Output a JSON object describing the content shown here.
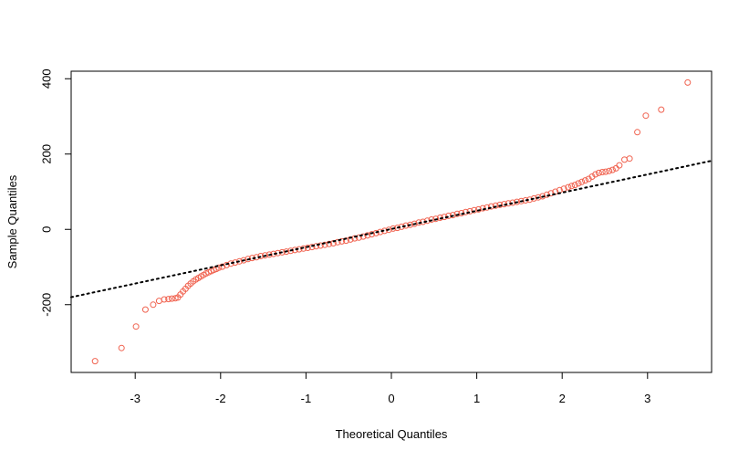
{
  "chart_data": {
    "type": "scatter",
    "xlabel": "Theoretical Quantiles",
    "ylabel": "Sample Quantiles",
    "x_ticks": [
      -3,
      -2,
      -1,
      0,
      1,
      2,
      3
    ],
    "x_tick_labels": [
      "-3",
      "-2",
      "-1",
      "0",
      "1",
      "2",
      "3"
    ],
    "y_ticks": [
      -200,
      0,
      200,
      400
    ],
    "y_tick_labels": [
      "-200",
      "0",
      "200",
      "400"
    ],
    "xlim": [
      -3.75,
      3.75
    ],
    "ylim": [
      -380,
      420
    ],
    "grid": false,
    "point_color": "#f0624f",
    "line_color": "#000000",
    "reference_line": {
      "slope": 48.3,
      "intercept": 1,
      "style": "dotted"
    },
    "series": [
      {
        "marker": "open-circle",
        "points": [
          [
            -3.47,
            -350
          ],
          [
            -3.16,
            -315
          ],
          [
            -2.99,
            -258
          ],
          [
            -2.88,
            -213
          ],
          [
            -2.79,
            -200
          ],
          [
            -2.72,
            -190
          ],
          [
            -2.66,
            -186
          ],
          [
            -2.61,
            -185
          ],
          [
            -2.57,
            -184
          ],
          [
            -2.53,
            -183
          ],
          [
            -2.5,
            -181
          ],
          [
            -2.47,
            -173
          ],
          [
            -2.44,
            -165
          ],
          [
            -2.41,
            -158
          ],
          [
            -2.38,
            -150
          ],
          [
            -2.35,
            -144
          ],
          [
            -2.32,
            -138
          ],
          [
            -2.29,
            -133
          ],
          [
            -2.26,
            -129
          ],
          [
            -2.23,
            -125
          ],
          [
            -2.2,
            -121
          ],
          [
            -2.17,
            -117
          ],
          [
            -2.14,
            -114
          ],
          [
            -2.11,
            -111
          ],
          [
            -2.08,
            -108
          ],
          [
            -2.05,
            -105
          ],
          [
            -2.02,
            -102
          ],
          [
            -1.98,
            -99
          ],
          [
            -1.93,
            -95
          ],
          [
            -1.88,
            -91
          ],
          [
            -1.83,
            -88
          ],
          [
            -1.78,
            -85
          ],
          [
            -1.73,
            -82
          ],
          [
            -1.68,
            -79
          ],
          [
            -1.63,
            -76
          ],
          [
            -1.58,
            -74
          ],
          [
            -1.53,
            -71
          ],
          [
            -1.48,
            -69
          ],
          [
            -1.43,
            -67
          ],
          [
            -1.38,
            -65
          ],
          [
            -1.33,
            -63
          ],
          [
            -1.28,
            -61
          ],
          [
            -1.23,
            -59
          ],
          [
            -1.18,
            -57
          ],
          [
            -1.13,
            -55
          ],
          [
            -1.08,
            -53
          ],
          [
            -1.03,
            -51
          ],
          [
            -0.98,
            -49
          ],
          [
            -0.93,
            -47
          ],
          [
            -0.88,
            -45
          ],
          [
            -0.83,
            -43
          ],
          [
            -0.78,
            -41
          ],
          [
            -0.73,
            -39
          ],
          [
            -0.68,
            -37
          ],
          [
            -0.63,
            -34
          ],
          [
            -0.58,
            -32
          ],
          [
            -0.53,
            -30
          ],
          [
            -0.48,
            -27
          ],
          [
            -0.43,
            -24
          ],
          [
            -0.38,
            -22
          ],
          [
            -0.33,
            -19
          ],
          [
            -0.28,
            -16
          ],
          [
            -0.23,
            -13
          ],
          [
            -0.18,
            -10
          ],
          [
            -0.13,
            -7
          ],
          [
            -0.08,
            -4
          ],
          [
            -0.03,
            -1
          ],
          [
            0.02,
            2
          ],
          [
            0.07,
            4
          ],
          [
            0.12,
            7
          ],
          [
            0.17,
            10
          ],
          [
            0.22,
            12
          ],
          [
            0.27,
            15
          ],
          [
            0.32,
            18
          ],
          [
            0.37,
            20
          ],
          [
            0.42,
            23
          ],
          [
            0.47,
            26
          ],
          [
            0.52,
            28
          ],
          [
            0.57,
            31
          ],
          [
            0.62,
            33
          ],
          [
            0.67,
            36
          ],
          [
            0.72,
            38
          ],
          [
            0.77,
            41
          ],
          [
            0.82,
            43
          ],
          [
            0.87,
            46
          ],
          [
            0.92,
            48
          ],
          [
            0.97,
            51
          ],
          [
            1.02,
            53
          ],
          [
            1.07,
            56
          ],
          [
            1.12,
            58
          ],
          [
            1.17,
            61
          ],
          [
            1.22,
            63
          ],
          [
            1.27,
            65
          ],
          [
            1.32,
            67
          ],
          [
            1.37,
            69
          ],
          [
            1.42,
            71
          ],
          [
            1.47,
            73
          ],
          [
            1.52,
            75
          ],
          [
            1.57,
            77
          ],
          [
            1.62,
            79
          ],
          [
            1.67,
            82
          ],
          [
            1.72,
            85
          ],
          [
            1.77,
            88
          ],
          [
            1.82,
            92
          ],
          [
            1.87,
            96
          ],
          [
            1.92,
            100
          ],
          [
            1.97,
            104
          ],
          [
            2.02,
            108
          ],
          [
            2.07,
            112
          ],
          [
            2.11,
            115
          ],
          [
            2.15,
            118
          ],
          [
            2.19,
            122
          ],
          [
            2.23,
            126
          ],
          [
            2.27,
            130
          ],
          [
            2.31,
            134
          ],
          [
            2.35,
            140
          ],
          [
            2.39,
            146
          ],
          [
            2.43,
            150
          ],
          [
            2.47,
            152
          ],
          [
            2.51,
            153
          ],
          [
            2.55,
            155
          ],
          [
            2.59,
            158
          ],
          [
            2.63,
            162
          ],
          [
            2.67,
            170
          ],
          [
            2.73,
            185
          ],
          [
            2.79,
            188
          ],
          [
            2.88,
            258
          ],
          [
            2.98,
            302
          ],
          [
            3.16,
            318
          ],
          [
            3.47,
            390
          ]
        ]
      }
    ]
  }
}
